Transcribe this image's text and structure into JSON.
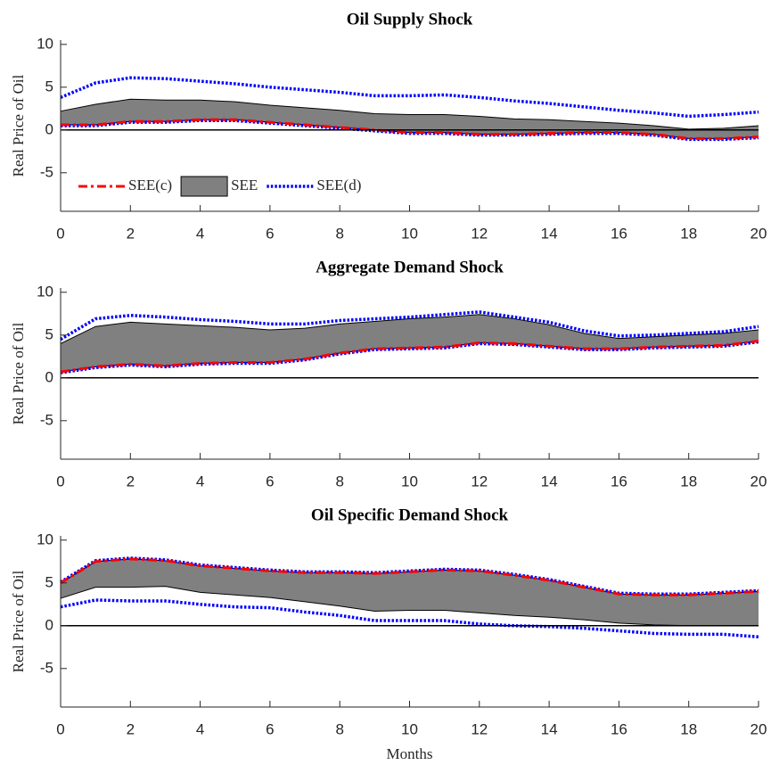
{
  "chart_data": [
    {
      "type": "line",
      "title": "Oil Supply Shock",
      "ylabel": "Real Price of Oil",
      "x": [
        0,
        1,
        2,
        3,
        4,
        5,
        6,
        7,
        8,
        9,
        10,
        11,
        12,
        13,
        14,
        15,
        16,
        17,
        18,
        19,
        20
      ],
      "xlim": [
        0,
        20
      ],
      "xticks": [
        0,
        2,
        4,
        6,
        8,
        10,
        12,
        14,
        16,
        18,
        20
      ],
      "ylim": [
        -9.5,
        10.5
      ],
      "yticks": [
        -5,
        0,
        5,
        10
      ],
      "zero_line": true,
      "legend": "lower left",
      "series": [
        {
          "name": "SEE(c)",
          "style": "dashdot",
          "color": "#ff0000",
          "values": [
            0.6,
            0.6,
            1.0,
            1.0,
            1.2,
            1.2,
            0.9,
            0.6,
            0.3,
            0.0,
            -0.3,
            -0.3,
            -0.5,
            -0.5,
            -0.4,
            -0.3,
            -0.3,
            -0.5,
            -1.0,
            -1.0,
            -0.8
          ]
        },
        {
          "name": "SEE",
          "style": "band",
          "color": "#808080",
          "upper": [
            2.2,
            3.0,
            3.6,
            3.5,
            3.5,
            3.3,
            2.9,
            2.6,
            2.3,
            1.9,
            1.8,
            1.8,
            1.6,
            1.3,
            1.2,
            1.0,
            0.8,
            0.5,
            0.1,
            0.2,
            0.5
          ],
          "lower": [
            0.6,
            0.6,
            1.0,
            1.0,
            1.2,
            1.2,
            0.9,
            0.6,
            0.3,
            0.0,
            -0.3,
            -0.3,
            -0.5,
            -0.5,
            -0.4,
            -0.3,
            -0.3,
            -0.5,
            -1.0,
            -1.0,
            -0.8
          ]
        },
        {
          "name": "SEE(d)",
          "style": "dotted",
          "color": "#0000ff",
          "upper": [
            3.8,
            5.5,
            6.1,
            6.0,
            5.7,
            5.4,
            5.0,
            4.7,
            4.4,
            4.0,
            4.0,
            4.1,
            3.8,
            3.4,
            3.1,
            2.7,
            2.3,
            2.0,
            1.6,
            1.8,
            2.1
          ],
          "lower": [
            0.5,
            0.5,
            0.9,
            0.9,
            1.1,
            1.1,
            0.8,
            0.5,
            0.2,
            -0.1,
            -0.4,
            -0.4,
            -0.6,
            -0.6,
            -0.5,
            -0.4,
            -0.4,
            -0.6,
            -1.1,
            -1.1,
            -0.9
          ]
        }
      ]
    },
    {
      "type": "line",
      "title": "Aggregate Demand Shock",
      "ylabel": "Real Price of Oil",
      "x": [
        0,
        1,
        2,
        3,
        4,
        5,
        6,
        7,
        8,
        9,
        10,
        11,
        12,
        13,
        14,
        15,
        16,
        17,
        18,
        19,
        20
      ],
      "xlim": [
        0,
        20
      ],
      "xticks": [
        0,
        2,
        4,
        6,
        8,
        10,
        12,
        14,
        16,
        18,
        20
      ],
      "ylim": [
        -9.5,
        10.5
      ],
      "yticks": [
        -5,
        0,
        5,
        10
      ],
      "zero_line": true,
      "series": [
        {
          "name": "SEE(c)",
          "style": "dashdot",
          "color": "#ff0000",
          "values": [
            0.7,
            1.3,
            1.6,
            1.4,
            1.7,
            1.8,
            1.8,
            2.2,
            2.9,
            3.4,
            3.5,
            3.6,
            4.1,
            4.0,
            3.7,
            3.4,
            3.4,
            3.6,
            3.7,
            3.8,
            4.3
          ]
        },
        {
          "name": "SEE",
          "style": "band",
          "color": "#808080",
          "upper": [
            4.0,
            6.0,
            6.5,
            6.3,
            6.1,
            5.9,
            5.6,
            5.8,
            6.3,
            6.6,
            6.9,
            7.1,
            7.4,
            6.9,
            6.2,
            5.2,
            4.6,
            4.8,
            5.0,
            5.2,
            5.6
          ],
          "lower": [
            0.7,
            1.3,
            1.6,
            1.4,
            1.7,
            1.8,
            1.8,
            2.2,
            2.9,
            3.4,
            3.5,
            3.6,
            4.1,
            4.0,
            3.7,
            3.4,
            3.4,
            3.6,
            3.7,
            3.8,
            4.3
          ]
        },
        {
          "name": "SEE(d)",
          "style": "dotted",
          "color": "#0000ff",
          "upper": [
            4.5,
            6.9,
            7.3,
            7.1,
            6.8,
            6.6,
            6.3,
            6.3,
            6.7,
            6.9,
            7.1,
            7.4,
            7.7,
            7.1,
            6.5,
            5.5,
            4.9,
            5.0,
            5.2,
            5.4,
            6.0
          ],
          "lower": [
            0.6,
            1.2,
            1.5,
            1.3,
            1.6,
            1.7,
            1.7,
            2.1,
            2.8,
            3.3,
            3.4,
            3.5,
            4.0,
            3.9,
            3.6,
            3.3,
            3.3,
            3.5,
            3.6,
            3.7,
            4.2
          ]
        }
      ]
    },
    {
      "type": "line",
      "title": "Oil Specific Demand Shock",
      "ylabel": "Real Price of Oil",
      "xlabel": "Months",
      "x": [
        0,
        1,
        2,
        3,
        4,
        5,
        6,
        7,
        8,
        9,
        10,
        11,
        12,
        13,
        14,
        15,
        16,
        17,
        18,
        19,
        20
      ],
      "xlim": [
        0,
        20
      ],
      "xticks": [
        0,
        2,
        4,
        6,
        8,
        10,
        12,
        14,
        16,
        18,
        20
      ],
      "ylim": [
        -9.5,
        10.5
      ],
      "yticks": [
        -5,
        0,
        5,
        10
      ],
      "zero_line": true,
      "series": [
        {
          "name": "SEE(c)",
          "style": "dashdot",
          "color": "#ff0000",
          "values": [
            5.0,
            7.5,
            7.8,
            7.6,
            7.0,
            6.7,
            6.4,
            6.2,
            6.2,
            6.1,
            6.3,
            6.5,
            6.4,
            5.9,
            5.3,
            4.5,
            3.7,
            3.6,
            3.6,
            3.8,
            4.0
          ]
        },
        {
          "name": "SEE",
          "style": "band",
          "color": "#808080",
          "upper": [
            5.0,
            7.5,
            7.8,
            7.6,
            7.0,
            6.7,
            6.4,
            6.2,
            6.2,
            6.1,
            6.3,
            6.5,
            6.4,
            5.9,
            5.3,
            4.5,
            3.7,
            3.6,
            3.6,
            3.8,
            4.0
          ],
          "lower": [
            3.2,
            4.5,
            4.5,
            4.6,
            3.9,
            3.6,
            3.3,
            2.8,
            2.3,
            1.7,
            1.8,
            1.8,
            1.5,
            1.2,
            1.0,
            0.7,
            0.3,
            0.1,
            0.0,
            0.0,
            0.0
          ]
        },
        {
          "name": "SEE(d)",
          "style": "dotted",
          "color": "#0000ff",
          "upper": [
            5.1,
            7.6,
            7.9,
            7.7,
            7.1,
            6.8,
            6.5,
            6.3,
            6.3,
            6.2,
            6.4,
            6.6,
            6.5,
            6.0,
            5.4,
            4.6,
            3.8,
            3.7,
            3.7,
            3.9,
            4.1
          ],
          "lower": [
            2.2,
            3.0,
            2.9,
            2.9,
            2.5,
            2.2,
            2.1,
            1.6,
            1.2,
            0.6,
            0.6,
            0.6,
            0.2,
            0.0,
            -0.1,
            -0.3,
            -0.6,
            -0.9,
            -1.0,
            -1.0,
            -1.3
          ]
        }
      ]
    }
  ]
}
